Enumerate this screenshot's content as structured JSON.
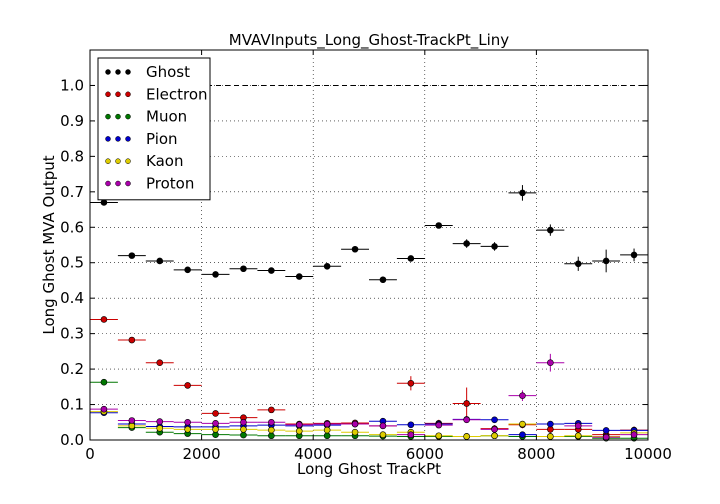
{
  "chart_data": {
    "type": "scatter",
    "title": "MVAVInputs_Long_Ghost-TrackPt_Liny",
    "xlabel": "Long Ghost TrackPt",
    "ylabel": "Long Ghost MVA Output",
    "xlim": [
      0,
      10000
    ],
    "ylim": [
      0,
      1.1
    ],
    "x_ticks": [
      "0",
      "2000",
      "4000",
      "6000",
      "8000",
      "10000"
    ],
    "y_ticks": [
      "0.0",
      "0.1",
      "0.2",
      "0.3",
      "0.4",
      "0.5",
      "0.6",
      "0.7",
      "0.8",
      "0.9",
      "1.0"
    ],
    "grid": true,
    "reference_line": 1.0,
    "legend_position": "top-left",
    "bin_half_width": 250,
    "series": [
      {
        "name": "Ghost",
        "color": "#000000",
        "x": [
          250,
          750,
          1250,
          1750,
          2250,
          2750,
          3250,
          3750,
          4250,
          4750,
          5250,
          5750,
          6250,
          6750,
          7250,
          7750,
          8250,
          8750,
          9250,
          9750
        ],
        "y": [
          0.67,
          0.52,
          0.505,
          0.48,
          0.467,
          0.483,
          0.478,
          0.461,
          0.49,
          0.538,
          0.452,
          0.512,
          0.605,
          0.554,
          0.546,
          0.697,
          0.592,
          0.497,
          0.505,
          0.522
        ],
        "yerr": [
          0.003,
          0.005,
          0.005,
          0.005,
          0.005,
          0.006,
          0.006,
          0.006,
          0.006,
          0.006,
          0.007,
          0.008,
          0.008,
          0.012,
          0.012,
          0.022,
          0.016,
          0.02,
          0.032,
          0.018
        ]
      },
      {
        "name": "Electron",
        "color": "#cc0000",
        "x": [
          250,
          750,
          1250,
          1750,
          2250,
          2750,
          3250,
          3750,
          4250,
          4750,
          5250,
          5750,
          6250,
          6750,
          7250,
          7750,
          8250,
          8750,
          9250,
          9750
        ],
        "y": [
          0.34,
          0.282,
          0.218,
          0.154,
          0.075,
          0.063,
          0.085,
          0.045,
          0.047,
          0.048,
          0.04,
          0.16,
          0.047,
          0.103,
          0.032,
          0.043,
          0.03,
          0.03,
          0.015,
          0.028
        ],
        "yerr": [
          0.004,
          0.004,
          0.005,
          0.005,
          0.005,
          0.006,
          0.006,
          0.006,
          0.006,
          0.008,
          0.008,
          0.02,
          0.01,
          0.045,
          0.01,
          0.01,
          0.01,
          0.01,
          0.01,
          0.01
        ]
      },
      {
        "name": "Muon",
        "color": "#007700",
        "x": [
          250,
          750,
          1250,
          1750,
          2250,
          2750,
          3250,
          3750,
          4250,
          4750,
          5250,
          5750,
          6250,
          6750,
          7250,
          7750,
          8250,
          8750,
          9250,
          9750
        ],
        "y": [
          0.163,
          0.035,
          0.022,
          0.018,
          0.015,
          0.014,
          0.012,
          0.012,
          0.012,
          0.012,
          0.011,
          0.01,
          0.01,
          0.01,
          0.012,
          0.01,
          0.01,
          0.01,
          0.005,
          0.005
        ],
        "yerr": [
          0.003,
          0.002,
          0.002,
          0.002,
          0.002,
          0.002,
          0.002,
          0.002,
          0.002,
          0.002,
          0.002,
          0.003,
          0.003,
          0.003,
          0.003,
          0.003,
          0.003,
          0.003,
          0.003,
          0.003
        ]
      },
      {
        "name": "Pion",
        "color": "#0000cc",
        "x": [
          250,
          750,
          1250,
          1750,
          2250,
          2750,
          3250,
          3750,
          4250,
          4750,
          5250,
          5750,
          6250,
          6750,
          7250,
          7750,
          8250,
          8750,
          9250,
          9750
        ],
        "y": [
          0.077,
          0.045,
          0.038,
          0.037,
          0.037,
          0.04,
          0.042,
          0.04,
          0.042,
          0.045,
          0.053,
          0.043,
          0.045,
          0.058,
          0.057,
          0.015,
          0.045,
          0.047,
          0.027,
          0.027
        ],
        "yerr": [
          0.002,
          0.002,
          0.002,
          0.002,
          0.002,
          0.002,
          0.002,
          0.002,
          0.002,
          0.003,
          0.003,
          0.003,
          0.003,
          0.004,
          0.004,
          0.004,
          0.004,
          0.005,
          0.005,
          0.005
        ]
      },
      {
        "name": "Kaon",
        "color": "#ddcc00",
        "x": [
          250,
          750,
          1250,
          1750,
          2250,
          2750,
          3250,
          3750,
          4250,
          4750,
          5250,
          5750,
          6250,
          6750,
          7250,
          7750,
          8250,
          8750,
          9250,
          9750
        ],
        "y": [
          0.08,
          0.04,
          0.033,
          0.03,
          0.03,
          0.03,
          0.028,
          0.025,
          0.028,
          0.022,
          0.015,
          0.022,
          0.012,
          0.01,
          0.012,
          0.045,
          0.01,
          0.012,
          0.01,
          0.02
        ],
        "yerr": [
          0.003,
          0.003,
          0.003,
          0.003,
          0.003,
          0.003,
          0.003,
          0.003,
          0.003,
          0.004,
          0.004,
          0.004,
          0.004,
          0.005,
          0.005,
          0.006,
          0.005,
          0.005,
          0.005,
          0.005
        ]
      },
      {
        "name": "Proton",
        "color": "#aa00aa",
        "x": [
          250,
          750,
          1250,
          1750,
          2250,
          2750,
          3250,
          3750,
          4250,
          4750,
          5250,
          5750,
          6250,
          6750,
          7250,
          7750,
          8250,
          8750,
          9250,
          9750
        ],
        "y": [
          0.087,
          0.055,
          0.052,
          0.05,
          0.047,
          0.05,
          0.05,
          0.043,
          0.045,
          0.045,
          0.04,
          0.015,
          0.042,
          0.057,
          0.03,
          0.125,
          0.218,
          0.04,
          0.008,
          0.015
        ],
        "yerr": [
          0.003,
          0.003,
          0.003,
          0.003,
          0.003,
          0.003,
          0.003,
          0.003,
          0.003,
          0.004,
          0.004,
          0.005,
          0.005,
          0.008,
          0.008,
          0.015,
          0.025,
          0.01,
          0.01,
          0.01
        ]
      }
    ]
  }
}
